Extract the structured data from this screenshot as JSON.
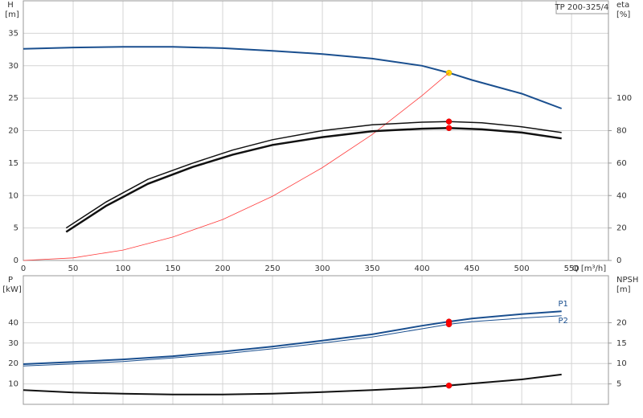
{
  "chart_data": [
    {
      "type": "line",
      "y_label": "H",
      "y_unit": "[m]",
      "y2_label": "eta",
      "y2_unit": "[%]",
      "x_label": "Q [m³/h]",
      "annotation": "TP 200-325/4",
      "xlim": [
        0,
        587
      ],
      "xticks": [
        0,
        50,
        100,
        150,
        200,
        250,
        300,
        350,
        400,
        450,
        500,
        550
      ],
      "ylim": [
        0,
        40
      ],
      "yticks": [
        0,
        5,
        10,
        15,
        20,
        25,
        30,
        35
      ],
      "y2lim": [
        0,
        160
      ],
      "y2ticks": [
        0,
        20,
        40,
        60,
        80,
        100
      ],
      "grid": true,
      "duty_q": 427,
      "series": [
        {
          "color": "#1a4f8f",
          "width": 2,
          "marker_color": "#ffd700",
          "x": [
            0,
            50,
            100,
            150,
            200,
            250,
            300,
            350,
            400,
            427,
            450,
            500,
            540
          ],
          "values": [
            32.6,
            32.8,
            32.9,
            32.9,
            32.7,
            32.3,
            31.8,
            31.1,
            30,
            28.9,
            27.8,
            25.7,
            23.4
          ]
        },
        {
          "color": "#ff3b3b",
          "width": 0.8,
          "x": [
            0,
            50,
            100,
            150,
            200,
            250,
            300,
            350,
            400,
            427
          ],
          "values": [
            0,
            0.4,
            1.6,
            3.6,
            6.3,
            9.9,
            14.3,
            19.4,
            25.4,
            28.9
          ]
        },
        {
          "color": "#111111",
          "width": 1.5,
          "axis": "y2",
          "marker_color": "#ff0000",
          "x": [
            43,
            83,
            125,
            170,
            210,
            250,
            300,
            350,
            400,
            427,
            460,
            500,
            540
          ],
          "values": [
            20,
            36,
            50,
            60,
            68,
            74.4,
            80,
            83.6,
            85.2,
            85.6,
            84.8,
            82.4,
            78.8
          ]
        },
        {
          "color": "#111111",
          "width": 2.5,
          "axis": "y2",
          "marker_color": "#ff0000",
          "x": [
            43,
            83,
            125,
            170,
            210,
            250,
            300,
            350,
            400,
            427,
            460,
            500,
            540
          ],
          "values": [
            17.6,
            33.6,
            47.2,
            57.6,
            65.2,
            71.2,
            76,
            79.6,
            81.2,
            81.6,
            80.8,
            78.8,
            75.2
          ]
        }
      ]
    },
    {
      "type": "line",
      "y_label": "P",
      "y_unit": "[kW]",
      "y2_label": "NPSH",
      "y2_unit": "[m]",
      "xlim": [
        0,
        587
      ],
      "ylim": [
        0,
        63
      ],
      "yticks": [
        10,
        20,
        30,
        40
      ],
      "y2lim": [
        0,
        31.5
      ],
      "y2ticks": [
        5,
        10,
        15,
        20
      ],
      "grid": true,
      "duty_q": 427,
      "series": [
        {
          "name": "P1",
          "color": "#1a4f8f",
          "width": 2,
          "marker_color": "#ff0000",
          "x": [
            0,
            50,
            100,
            150,
            200,
            250,
            300,
            350,
            400,
            427,
            450,
            500,
            540
          ],
          "values": [
            19.7,
            20.8,
            22,
            23.6,
            25.8,
            28.3,
            31.2,
            34.3,
            38.5,
            40.5,
            42,
            44.2,
            45.6
          ]
        },
        {
          "name": "P2",
          "color": "#1a4f8f",
          "width": 1,
          "marker_color": "#ff0000",
          "x": [
            0,
            50,
            100,
            150,
            200,
            250,
            300,
            350,
            400,
            427,
            450,
            500,
            540
          ],
          "values": [
            18.8,
            19.8,
            21,
            22.7,
            24.7,
            27.2,
            30,
            33,
            37,
            39.2,
            40.5,
            42.2,
            43.4
          ]
        },
        {
          "color": "#111111",
          "width": 2,
          "axis": "y2",
          "marker_color": "#ff0000",
          "x": [
            0,
            50,
            100,
            150,
            200,
            250,
            300,
            350,
            400,
            427,
            450,
            500,
            540
          ],
          "values": [
            3.5,
            2.9,
            2.6,
            2.4,
            2.4,
            2.6,
            3.0,
            3.5,
            4.1,
            4.6,
            5.1,
            6.1,
            7.3
          ]
        }
      ]
    }
  ]
}
